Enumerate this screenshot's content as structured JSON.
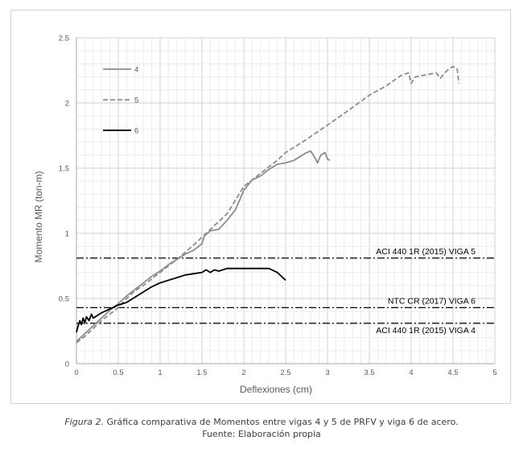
{
  "chart_data": {
    "type": "line",
    "title": "",
    "xlabel": "Deflexiones (cm)",
    "ylabel": "Momento MR (ton-m)",
    "xlim": [
      0,
      5
    ],
    "ylim": [
      0,
      2.5
    ],
    "xticks": [
      "0",
      "0.5",
      "1",
      "1.5",
      "2",
      "2.5",
      "3",
      "3.5",
      "4",
      "4.5",
      "5"
    ],
    "yticks": [
      "0",
      "0.5",
      "1",
      "1.5",
      "2",
      "2.5"
    ],
    "grid": true,
    "legend_position": "top-left",
    "series": [
      {
        "name": "4",
        "style": "solid",
        "color": "#8c8c8c",
        "points": [
          [
            0,
            0.17
          ],
          [
            0.05,
            0.2
          ],
          [
            0.1,
            0.23
          ],
          [
            0.2,
            0.29
          ],
          [
            0.3,
            0.35
          ],
          [
            0.4,
            0.41
          ],
          [
            0.5,
            0.46
          ],
          [
            0.6,
            0.52
          ],
          [
            0.7,
            0.57
          ],
          [
            0.8,
            0.62
          ],
          [
            0.9,
            0.67
          ],
          [
            1.0,
            0.71
          ],
          [
            1.1,
            0.76
          ],
          [
            1.2,
            0.8
          ],
          [
            1.3,
            0.84
          ],
          [
            1.4,
            0.87
          ],
          [
            1.5,
            0.92
          ],
          [
            1.53,
            0.98
          ],
          [
            1.6,
            1.02
          ],
          [
            1.7,
            1.03
          ],
          [
            1.8,
            1.1
          ],
          [
            1.9,
            1.18
          ],
          [
            2.0,
            1.33
          ],
          [
            2.1,
            1.41
          ],
          [
            2.2,
            1.44
          ],
          [
            2.3,
            1.49
          ],
          [
            2.4,
            1.53
          ],
          [
            2.5,
            1.54
          ],
          [
            2.6,
            1.56
          ],
          [
            2.7,
            1.6
          ],
          [
            2.75,
            1.62
          ],
          [
            2.8,
            1.63
          ],
          [
            2.85,
            1.58
          ],
          [
            2.88,
            1.54
          ],
          [
            2.92,
            1.6
          ],
          [
            2.97,
            1.62
          ],
          [
            3.0,
            1.57
          ],
          [
            3.03,
            1.56
          ]
        ]
      },
      {
        "name": "5",
        "style": "dashed",
        "color": "#8c8c8c",
        "points": [
          [
            0,
            0.16
          ],
          [
            0.1,
            0.21
          ],
          [
            0.2,
            0.27
          ],
          [
            0.3,
            0.33
          ],
          [
            0.4,
            0.38
          ],
          [
            0.5,
            0.43
          ],
          [
            0.6,
            0.5
          ],
          [
            0.7,
            0.56
          ],
          [
            0.8,
            0.6
          ],
          [
            0.9,
            0.65
          ],
          [
            1.0,
            0.7
          ],
          [
            1.2,
            0.8
          ],
          [
            1.4,
            0.91
          ],
          [
            1.6,
            1.03
          ],
          [
            1.8,
            1.15
          ],
          [
            2.0,
            1.36
          ],
          [
            2.2,
            1.46
          ],
          [
            2.4,
            1.56
          ],
          [
            2.5,
            1.62
          ],
          [
            2.7,
            1.7
          ],
          [
            3.0,
            1.83
          ],
          [
            3.2,
            1.92
          ],
          [
            3.5,
            2.06
          ],
          [
            3.7,
            2.13
          ],
          [
            3.9,
            2.22
          ],
          [
            3.97,
            2.23
          ],
          [
            4.0,
            2.15
          ],
          [
            4.05,
            2.2
          ],
          [
            4.2,
            2.22
          ],
          [
            4.3,
            2.23
          ],
          [
            4.35,
            2.19
          ],
          [
            4.4,
            2.23
          ],
          [
            4.45,
            2.26
          ],
          [
            4.5,
            2.28
          ],
          [
            4.55,
            2.26
          ],
          [
            4.57,
            2.15
          ]
        ]
      },
      {
        "name": "6",
        "style": "solid",
        "color": "#000000",
        "points": [
          [
            0,
            0.24
          ],
          [
            0.02,
            0.29
          ],
          [
            0.04,
            0.33
          ],
          [
            0.06,
            0.3
          ],
          [
            0.08,
            0.35
          ],
          [
            0.1,
            0.31
          ],
          [
            0.12,
            0.36
          ],
          [
            0.15,
            0.33
          ],
          [
            0.18,
            0.38
          ],
          [
            0.2,
            0.35
          ],
          [
            0.25,
            0.37
          ],
          [
            0.3,
            0.39
          ],
          [
            0.4,
            0.42
          ],
          [
            0.5,
            0.45
          ],
          [
            0.6,
            0.47
          ],
          [
            0.7,
            0.51
          ],
          [
            0.8,
            0.55
          ],
          [
            0.9,
            0.59
          ],
          [
            1.0,
            0.62
          ],
          [
            1.1,
            0.64
          ],
          [
            1.2,
            0.66
          ],
          [
            1.3,
            0.68
          ],
          [
            1.4,
            0.69
          ],
          [
            1.5,
            0.7
          ],
          [
            1.55,
            0.72
          ],
          [
            1.6,
            0.7
          ],
          [
            1.65,
            0.72
          ],
          [
            1.7,
            0.71
          ],
          [
            1.8,
            0.73
          ],
          [
            2.0,
            0.73
          ],
          [
            2.2,
            0.73
          ],
          [
            2.3,
            0.73
          ],
          [
            2.4,
            0.7
          ],
          [
            2.5,
            0.64
          ]
        ]
      }
    ],
    "reference_lines": [
      {
        "label": "ACI 440 1R (2015) VIGA 5",
        "y": 0.81
      },
      {
        "label": "NTC CR (2017) VIGA 6",
        "y": 0.43
      },
      {
        "label": "ACI 440 1R (2015) VIGA 4",
        "y": 0.31
      }
    ]
  },
  "caption": {
    "figure_label": "Figura 2.",
    "text": " Gráfica comparativa de Momentos entre vigas 4 y 5 de PRFV y viga 6 de acero.",
    "source": "Fuente: Elaboración propia"
  }
}
